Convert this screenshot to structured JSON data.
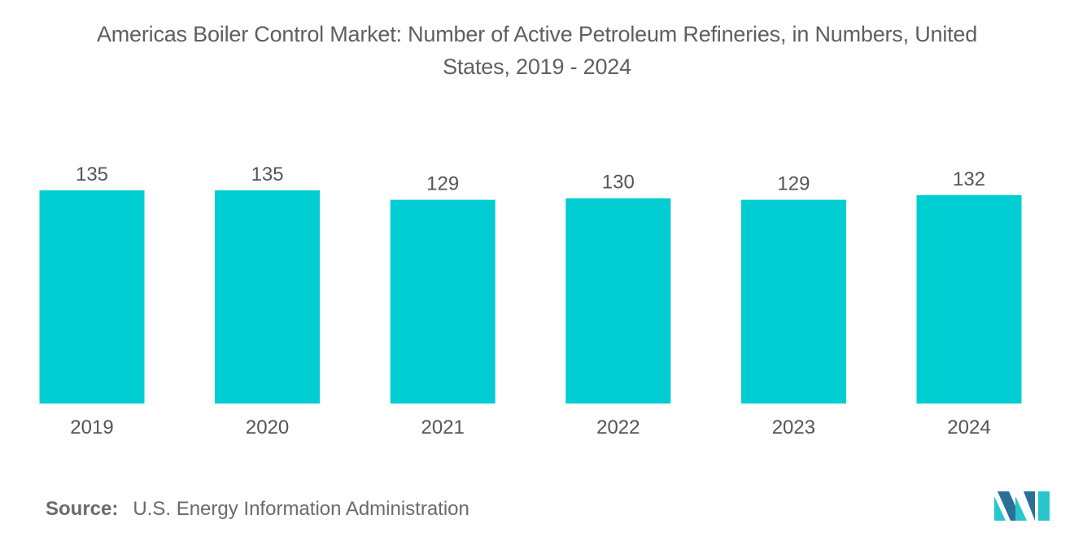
{
  "title_line1": "Americas Boiler Control Market: Number of Active Petroleum Refineries, in Numbers, United",
  "title_line2": "States, 2019 - 2024",
  "source": {
    "label": "Source:",
    "text": "U.S. Energy Information Administration"
  },
  "logo": {
    "icon": "mordor-logo-icon"
  },
  "colors": {
    "bar": "#00cdd1",
    "text": "#555555",
    "logo_dark": "#2a6f97",
    "logo_light": "#29c5cc"
  },
  "chart_data": {
    "type": "bar",
    "title": "Americas Boiler Control Market: Number of Active Petroleum Refineries, in Numbers, United States, 2019 - 2024",
    "categories": [
      "2019",
      "2020",
      "2021",
      "2022",
      "2023",
      "2024"
    ],
    "values": [
      135,
      135,
      129,
      130,
      129,
      132
    ],
    "data_labels": [
      "135",
      "135",
      "129",
      "130",
      "129",
      "132"
    ],
    "xlabel": "",
    "ylabel": "",
    "ylim": [
      0,
      135
    ],
    "grid": false,
    "legend": "none"
  }
}
